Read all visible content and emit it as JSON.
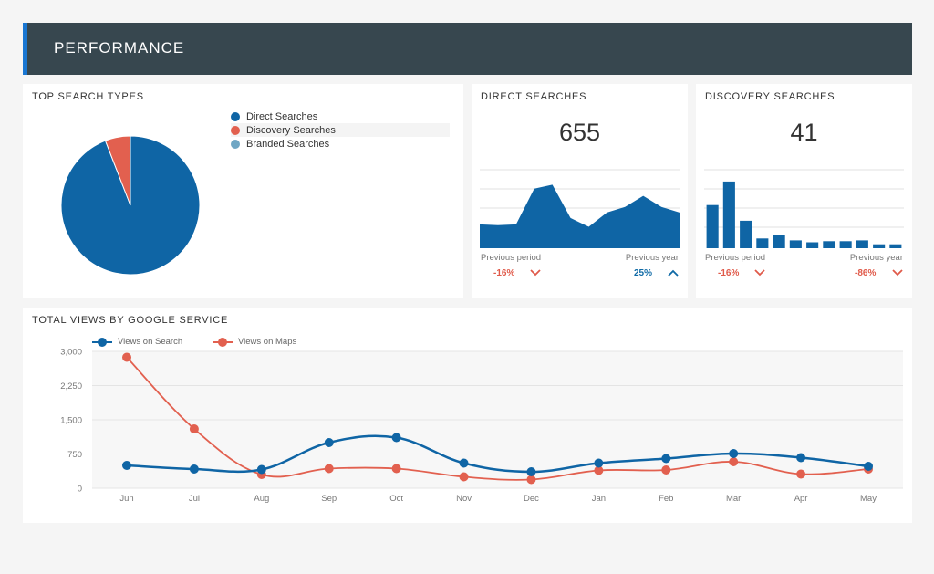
{
  "header": {
    "title": "PERFORMANCE"
  },
  "colors": {
    "direct": "#0f65a5",
    "discovery": "#e2604f",
    "branded": "#6fa6c4",
    "header_bg": "#37474f",
    "accent": "#1976d2"
  },
  "top_search_types": {
    "title": "TOP SEARCH TYPES",
    "legend": [
      "Direct Searches",
      "Discovery Searches",
      "Branded Searches"
    ]
  },
  "direct_searches": {
    "title": "DIRECT SEARCHES",
    "value": "655",
    "prev_period_label": "Previous period",
    "prev_period_value": "-16%",
    "prev_year_label": "Previous year",
    "prev_year_value": "25%"
  },
  "discovery_searches": {
    "title": "DISCOVERY SEARCHES",
    "value": "41",
    "prev_period_label": "Previous period",
    "prev_period_value": "-16%",
    "prev_year_label": "Previous year",
    "prev_year_value": "-86%"
  },
  "total_views": {
    "title": "TOTAL VIEWS BY GOOGLE SERVICE"
  },
  "chart_data": [
    {
      "type": "pie",
      "title": "TOP SEARCH TYPES",
      "categories": [
        "Direct Searches",
        "Discovery Searches",
        "Branded Searches"
      ],
      "values": [
        655,
        41,
        0
      ]
    },
    {
      "type": "area",
      "title": "DIRECT SEARCHES",
      "values": [
        30,
        29,
        30,
        75,
        80,
        38,
        27,
        45,
        52,
        66,
        52,
        45
      ],
      "ylim": [
        0,
        100
      ]
    },
    {
      "type": "bar",
      "title": "DISCOVERY SEARCHES",
      "values": [
        11,
        17,
        7,
        2.5,
        3.5,
        2,
        1.5,
        1.8,
        1.8,
        2,
        1,
        1
      ],
      "ylim": [
        0,
        20
      ]
    },
    {
      "type": "line",
      "title": "TOTAL VIEWS BY GOOGLE SERVICE",
      "categories": [
        "Jun",
        "Jul",
        "Aug",
        "Sep",
        "Oct",
        "Nov",
        "Dec",
        "Jan",
        "Feb",
        "Mar",
        "Apr",
        "May"
      ],
      "y_ticks": [
        "0",
        "750",
        "1,500",
        "2,250",
        "3,000"
      ],
      "ylim": [
        0,
        3000
      ],
      "series": [
        {
          "name": "Views on Search",
          "values": [
            500,
            420,
            410,
            1000,
            1110,
            550,
            360,
            550,
            650,
            760,
            670,
            480
          ]
        },
        {
          "name": "Views on Maps",
          "values": [
            2870,
            1300,
            300,
            430,
            430,
            250,
            190,
            390,
            400,
            580,
            310,
            420
          ]
        }
      ]
    }
  ]
}
